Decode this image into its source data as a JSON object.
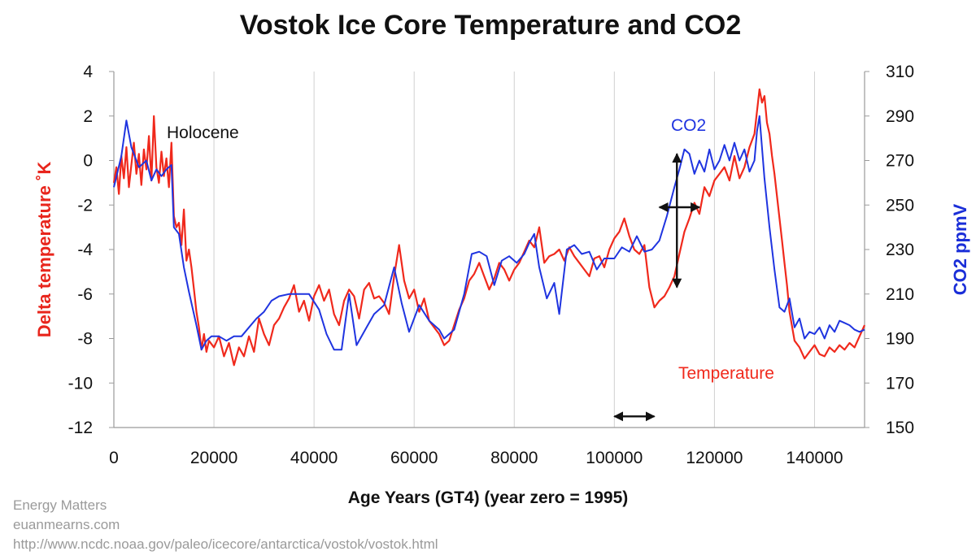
{
  "credits": {
    "line1": "Energy Matters",
    "line2": "euanmearns.com",
    "line3": "http://www.ncdc.noaa.gov/paleo/icecore/antarctica/vostok/vostok.html"
  },
  "colors": {
    "temperature": "#f0291c",
    "co2": "#1f34e0",
    "axis_left_label": "#e8251c",
    "axis_right_label": "#1a2ed8",
    "gridline": "#d0d0d0",
    "arrow": "#111111"
  },
  "chart_data": {
    "type": "line",
    "title": "Vostok Ice Core Temperature and CO2",
    "xlabel": "Age Years (GT4) (year zero = 1995)",
    "ylabel_left": "Delta temperature ˚K",
    "ylabel_right": "CO2 ppmV",
    "xlim": [
      0,
      150000
    ],
    "ylim_left": [
      -12,
      4
    ],
    "ylim_right": [
      150,
      310
    ],
    "x_ticks": [
      0,
      20000,
      40000,
      60000,
      80000,
      100000,
      120000,
      140000
    ],
    "x_tick_labels": [
      "0",
      "20000",
      "40000",
      "60000",
      "80000",
      "100000",
      "120000",
      "140000"
    ],
    "y_left_ticks": [
      4,
      2,
      0,
      -2,
      -4,
      -6,
      -8,
      -10,
      -12
    ],
    "y_left_tick_labels": [
      "4",
      "2",
      "0",
      "-2",
      "-4",
      "-6",
      "-8",
      "-10",
      "-12"
    ],
    "y_right_ticks": [
      310,
      290,
      270,
      250,
      230,
      210,
      190,
      170,
      150
    ],
    "y_right_tick_labels": [
      "310",
      "290",
      "270",
      "250",
      "230",
      "210",
      "190",
      "170",
      "150"
    ],
    "grid": "vertical",
    "annotations": {
      "holocene": "Holocene",
      "co2": "CO2",
      "temperature": "Temperature"
    },
    "arrows": [
      {
        "type": "horizontal",
        "x": [
          100000,
          108000
        ],
        "y_left": -11.5
      },
      {
        "type": "horizontal",
        "x": [
          109000,
          117000
        ],
        "y_left": -2.1
      },
      {
        "type": "vertical",
        "x": 112500,
        "y_left": [
          0.3,
          -5.7
        ]
      }
    ],
    "series": [
      {
        "name": "Temperature",
        "axis": "left",
        "x": [
          0,
          500,
          1000,
          1500,
          2000,
          2500,
          3000,
          3500,
          4000,
          4500,
          5000,
          5500,
          6000,
          6500,
          7000,
          7500,
          8000,
          8500,
          9000,
          9500,
          10000,
          10500,
          11000,
          11500,
          12000,
          12500,
          13000,
          13500,
          14000,
          14500,
          15000,
          15500,
          16000,
          16500,
          17000,
          17500,
          18000,
          18500,
          19000,
          20000,
          21000,
          22000,
          23000,
          24000,
          25000,
          26000,
          27000,
          28000,
          29000,
          30000,
          31000,
          32000,
          33000,
          34000,
          35000,
          36000,
          37000,
          38000,
          39000,
          40000,
          41000,
          42000,
          43000,
          44000,
          45000,
          46000,
          47000,
          48000,
          49000,
          50000,
          51000,
          52000,
          53000,
          54000,
          55000,
          56000,
          57000,
          58000,
          59000,
          60000,
          61000,
          62000,
          63000,
          64000,
          65000,
          66000,
          67000,
          68000,
          69000,
          70000,
          71000,
          72000,
          73000,
          74000,
          75000,
          76000,
          77000,
          78000,
          79000,
          80000,
          81000,
          82000,
          83000,
          84000,
          85000,
          86000,
          87000,
          88000,
          89000,
          90000,
          91000,
          92000,
          93000,
          94000,
          95000,
          96000,
          97000,
          98000,
          99000,
          100000,
          101000,
          102000,
          103000,
          104000,
          105000,
          106000,
          107000,
          108000,
          109000,
          110000,
          111000,
          112000,
          113000,
          114000,
          115000,
          116000,
          117000,
          118000,
          119000,
          120000,
          121000,
          122000,
          123000,
          124000,
          125000,
          126000,
          127000,
          128000,
          128500,
          129000,
          129500,
          130000,
          130500,
          131000,
          131500,
          132000,
          132500,
          133000,
          133500,
          134000,
          134500,
          135000,
          136000,
          137000,
          138000,
          139000,
          140000,
          141000,
          142000,
          143000,
          144000,
          145000,
          146000,
          147000,
          148000,
          149000,
          150000
        ],
        "values": [
          -1,
          -0.3,
          -1.5,
          0.2,
          -0.8,
          0.6,
          -1.2,
          -0.2,
          0.8,
          -0.6,
          0.3,
          -1.1,
          0.5,
          -0.4,
          1.1,
          -0.9,
          2,
          -0.3,
          -1,
          0.4,
          -0.7,
          0.1,
          -1.2,
          0.8,
          -2.5,
          -3,
          -2.8,
          -3.8,
          -2.2,
          -4.5,
          -4,
          -4.8,
          -5.8,
          -6.8,
          -7.5,
          -8.5,
          -7.8,
          -8.6,
          -8.1,
          -8.4,
          -7.9,
          -8.8,
          -8.2,
          -9.2,
          -8.4,
          -8.8,
          -7.9,
          -8.6,
          -7.1,
          -7.8,
          -8.3,
          -7.4,
          -7.1,
          -6.6,
          -6.2,
          -5.6,
          -6.8,
          -6.3,
          -7.2,
          -6.1,
          -5.6,
          -6.3,
          -5.8,
          -6.9,
          -7.4,
          -6.3,
          -5.8,
          -6.1,
          -7.1,
          -5.8,
          -5.5,
          -6.2,
          -6.1,
          -6.4,
          -6.9,
          -5.2,
          -3.8,
          -5.4,
          -6.2,
          -5.8,
          -6.8,
          -6.2,
          -7.2,
          -7.5,
          -7.8,
          -8.3,
          -8.1,
          -7.4,
          -6.7,
          -6.2,
          -5.4,
          -5.1,
          -4.6,
          -5.2,
          -5.8,
          -5.3,
          -4.6,
          -4.9,
          -5.4,
          -4.9,
          -4.6,
          -4.1,
          -3.6,
          -3.9,
          -3,
          -4.6,
          -4.3,
          -4.2,
          -4,
          -4.5,
          -3.9,
          -4.3,
          -4.6,
          -4.9,
          -5.2,
          -4.4,
          -4.3,
          -4.8,
          -4,
          -3.5,
          -3.2,
          -2.6,
          -3.4,
          -4,
          -4.2,
          -3.8,
          -5.7,
          -6.6,
          -6.3,
          -6.1,
          -5.7,
          -5.2,
          -4.2,
          -3.2,
          -2.6,
          -1.9,
          -2.4,
          -1.2,
          -1.6,
          -0.9,
          -0.6,
          -0.3,
          -0.9,
          0.2,
          -0.8,
          -0.3,
          0.6,
          1.2,
          2.2,
          3.2,
          2.6,
          2.9,
          1.7,
          1.2,
          0.2,
          -0.6,
          -1.6,
          -2.6,
          -3.6,
          -4.6,
          -5.6,
          -6.8,
          -8.1,
          -8.4,
          -8.9,
          -8.6,
          -8.3,
          -8.7,
          -8.8,
          -8.4,
          -8.6,
          -8.3,
          -8.5,
          -8.2,
          -8.4,
          -7.9,
          -7.4
        ]
      },
      {
        "name": "CO2",
        "axis": "right",
        "x": [
          0,
          1500,
          2500,
          3500,
          5000,
          6500,
          7500,
          8500,
          9500,
          10500,
          11500,
          12000,
          13000,
          14000,
          15000,
          16500,
          17500,
          18500,
          19500,
          21000,
          22500,
          24000,
          25500,
          27000,
          28500,
          30000,
          31500,
          33000,
          35000,
          37000,
          39000,
          41000,
          42500,
          44000,
          45500,
          47000,
          48500,
          50500,
          52000,
          54000,
          56000,
          57500,
          59000,
          61000,
          63000,
          65000,
          66000,
          68000,
          70000,
          71500,
          73000,
          74500,
          76000,
          77500,
          79000,
          80500,
          82000,
          83000,
          84000,
          85000,
          86500,
          88000,
          89000,
          90500,
          92000,
          93500,
          95000,
          96500,
          98000,
          100000,
          101500,
          103000,
          104500,
          106000,
          107500,
          109000,
          110500,
          112000,
          113000,
          114000,
          115000,
          116000,
          117000,
          118000,
          119000,
          120000,
          121000,
          122000,
          123000,
          124000,
          125000,
          126000,
          127000,
          128000,
          128500,
          129000,
          130000,
          131000,
          132000,
          133000,
          134000,
          135000,
          136000,
          137000,
          138000,
          139000,
          140000,
          141000,
          142000,
          143000,
          144000,
          145000,
          146000,
          147000,
          148000,
          149000,
          150000
        ],
        "values": [
          258,
          272,
          288,
          276,
          267,
          270,
          261,
          266,
          263,
          266,
          268,
          240,
          237,
          222,
          211,
          196,
          185,
          189,
          191,
          191,
          189,
          191,
          191,
          195,
          199,
          202,
          207,
          209,
          210,
          210,
          210,
          203,
          192,
          185,
          185,
          210,
          187,
          195,
          201,
          205,
          222,
          206,
          193,
          205,
          198,
          194,
          190,
          194,
          210,
          228,
          229,
          227,
          214,
          225,
          227,
          224,
          228,
          233,
          237,
          222,
          208,
          215,
          201,
          230,
          232,
          228,
          229,
          221,
          226,
          226,
          231,
          229,
          236,
          229,
          230,
          234,
          245,
          258,
          266,
          275,
          273,
          264,
          270,
          265,
          275,
          266,
          270,
          277,
          270,
          278,
          270,
          275,
          265,
          270,
          283,
          290,
          262,
          240,
          221,
          204,
          202,
          208,
          195,
          199,
          190,
          193,
          192,
          195,
          190,
          196,
          193,
          198,
          197,
          196,
          194,
          193,
          194
        ]
      }
    ]
  }
}
